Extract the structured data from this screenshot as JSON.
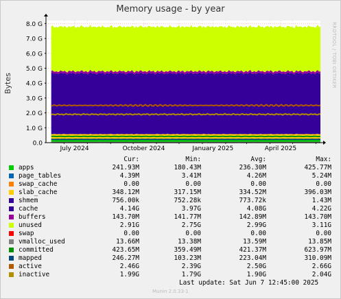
{
  "title": "Memory usage - by year",
  "ylabel": "Bytes",
  "side_text": "RRDTOOL / TOBI OETIKER",
  "footer": "Munin 2.0.33-1",
  "last_update": "Last update:  Sat Jun  7 12:45:00 2025",
  "legend_headers": [
    "Cur:",
    "Min:",
    "Avg:",
    "Max:"
  ],
  "legend": [
    {
      "name": "apps",
      "color": "#00cc00",
      "cur": "241.93M",
      "min": "180.43M",
      "avg": "236.30M",
      "max": "425.77M"
    },
    {
      "name": "page_tables",
      "color": "#0066b3",
      "cur": "4.39M",
      "min": "3.41M",
      "avg": "4.26M",
      "max": "5.24M"
    },
    {
      "name": "swap_cache",
      "color": "#ff8000",
      "cur": "0.00",
      "min": "0.00",
      "avg": "0.00",
      "max": "0.00"
    },
    {
      "name": "slab_cache",
      "color": "#ffcc00",
      "cur": "348.12M",
      "min": "317.15M",
      "avg": "334.52M",
      "max": "396.03M"
    },
    {
      "name": "shmem",
      "color": "#330099",
      "cur": "756.00k",
      "min": "752.28k",
      "avg": "773.72k",
      "max": "1.43M"
    },
    {
      "name": "cache",
      "color": "#330099",
      "cur": "4.14G",
      "min": "3.97G",
      "avg": "4.08G",
      "max": "4.22G"
    },
    {
      "name": "buffers",
      "color": "#990099",
      "cur": "143.70M",
      "min": "141.77M",
      "avg": "142.89M",
      "max": "143.70M"
    },
    {
      "name": "unused",
      "color": "#ccff00",
      "cur": "2.91G",
      "min": "2.75G",
      "avg": "2.99G",
      "max": "3.11G"
    },
    {
      "name": "swap",
      "color": "#ff0000",
      "cur": "0.00",
      "min": "0.00",
      "avg": "0.00",
      "max": "0.00"
    },
    {
      "name": "vmalloc_used",
      "color": "#808080",
      "cur": "13.66M",
      "min": "13.38M",
      "avg": "13.59M",
      "max": "13.85M"
    },
    {
      "name": "committed",
      "color": "#008f00",
      "cur": "423.65M",
      "min": "359.49M",
      "avg": "421.37M",
      "max": "623.97M"
    },
    {
      "name": "mapped",
      "color": "#00487d",
      "cur": "246.27M",
      "min": "103.23M",
      "avg": "223.04M",
      "max": "310.09M"
    },
    {
      "name": "active",
      "color": "#b35a00",
      "cur": "2.46G",
      "min": "2.39G",
      "avg": "2.50G",
      "max": "2.66G"
    },
    {
      "name": "inactive",
      "color": "#b38f00",
      "cur": "1.99G",
      "min": "1.79G",
      "avg": "1.90G",
      "max": "2.04G"
    }
  ],
  "chart_data": {
    "type": "area",
    "title": "Memory usage - by year",
    "ylabel": "Bytes",
    "y_ticks": [
      "0.0",
      "1.0 G",
      "2.0 G",
      "3.0 G",
      "4.0 G",
      "5.0 G",
      "6.0 G",
      "7.0 G",
      "8.0 G"
    ],
    "ylim_gb": [
      0,
      8.2
    ],
    "x_ticks": [
      "July 2024",
      "October 2024",
      "January 2025",
      "April 2025"
    ],
    "x_range": [
      "2024-06-07",
      "2025-06-07"
    ],
    "grid": true,
    "stacked_series_gb": [
      {
        "name": "apps",
        "color": "#00cc00",
        "value": 0.24
      },
      {
        "name": "page_tables",
        "color": "#0066b3",
        "value": 0.004
      },
      {
        "name": "slab_cache",
        "color": "#ffcc00",
        "value": 0.33
      },
      {
        "name": "cache",
        "color": "#330099",
        "value": 4.08
      },
      {
        "name": "buffers",
        "color": "#990099",
        "value": 0.14
      },
      {
        "name": "unused",
        "color": "#ccff00",
        "value": 2.99
      }
    ],
    "line_series_gb": [
      {
        "name": "committed",
        "color": "#008f00",
        "value": 0.42
      },
      {
        "name": "mapped",
        "color": "#00487d",
        "value": 0.22
      },
      {
        "name": "active",
        "color": "#b35a00",
        "value": 2.5
      },
      {
        "name": "inactive",
        "color": "#b38f00",
        "value": 1.9
      },
      {
        "name": "vmalloc_used",
        "color": "#808080",
        "value": 0.014
      }
    ]
  }
}
